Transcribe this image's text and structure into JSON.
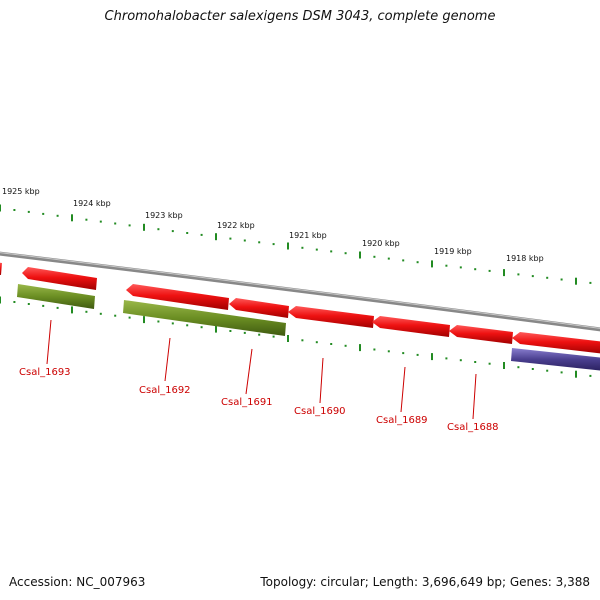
{
  "title": "Chromohalobacter salexigens DSM 3043, complete genome",
  "footer": {
    "accession": "Accession: NC_007963",
    "summary": "Topology: circular; Length: 3,696,649 bp; Genes: 3,388"
  },
  "scale_labels": [
    "1925 kbp",
    "1924 kbp",
    "1923 kbp",
    "1922 kbp",
    "1921 kbp",
    "1920 kbp",
    "1919 kbp",
    "1918 kbp"
  ],
  "gene_labels": [
    "Csal_1693",
    "Csal_1692",
    "Csal_1691",
    "Csal_1690",
    "Csal_1689",
    "Csal_1688"
  ],
  "colors": {
    "cds_red": "#ee1111",
    "cds_green": "#6b8e23",
    "cds_blue": "#4a3f8f",
    "backbone": "#888888",
    "ticks": "#228b22",
    "labels": "#cc0000"
  }
}
